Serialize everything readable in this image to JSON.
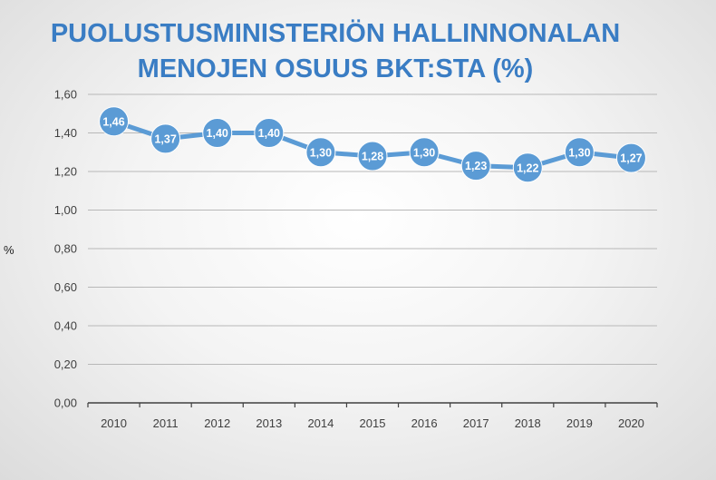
{
  "chart_data": {
    "type": "line",
    "title_lines": [
      "PUOLUSTUSMINISTERIÖN HALLINNONALAN",
      "MENOJEN OSUUS BKT:STA (%)"
    ],
    "xlabel": "",
    "ylabel": "%",
    "categories": [
      "2010",
      "2011",
      "2012",
      "2013",
      "2014",
      "2015",
      "2016",
      "2017",
      "2018",
      "2019",
      "2020"
    ],
    "series": [
      {
        "values": [
          1.46,
          1.37,
          1.4,
          1.4,
          1.3,
          1.28,
          1.3,
          1.23,
          1.22,
          1.3,
          1.27
        ],
        "data_labels": [
          "1,46",
          "1,37",
          "1,40",
          "1,40",
          "1,30",
          "1,28",
          "1,30",
          "1,23",
          "1,22",
          "1,30",
          "1,27"
        ],
        "color": "#5b9bd5"
      }
    ],
    "yticks": [
      0,
      0.2,
      0.4,
      0.6,
      0.8,
      1.0,
      1.2,
      1.4,
      1.6
    ],
    "ytick_labels": [
      "0,00",
      "0,20",
      "0,40",
      "0,60",
      "0,80",
      "1,00",
      "1,20",
      "1,40",
      "1,60"
    ],
    "ylim": [
      0,
      1.6
    ],
    "grid": true,
    "legend": "none",
    "title_color": "#3a7dc4"
  }
}
